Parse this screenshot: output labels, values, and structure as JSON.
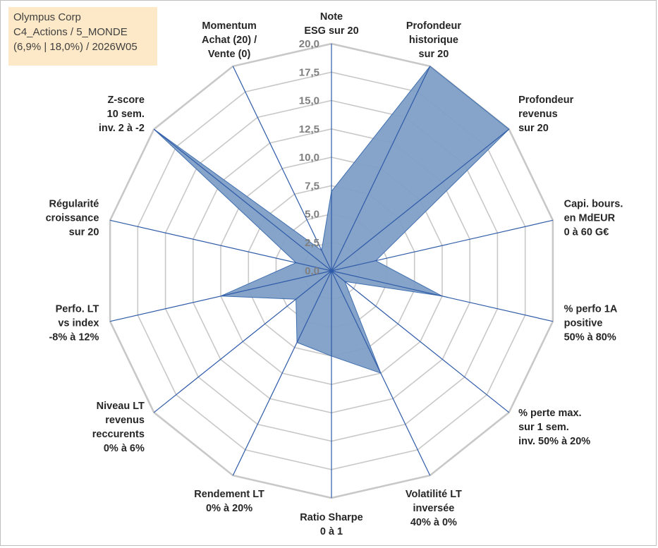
{
  "title_box": {
    "line1": "Olympus Corp",
    "line2": "C4_Actions / 5_MONDE",
    "line3": "(6,9% | 18,0%) / 2026W05"
  },
  "colors": {
    "series_fill": "#7f9fc6",
    "series_stroke": "#3f6fb0",
    "grid": "#c8c8c8",
    "spoke": "#2e5aa8",
    "title_bg": "#fde9c7",
    "tick_text": "#7f7f7f",
    "label_text": "#262626"
  },
  "chart_data": {
    "type": "radar",
    "rmin": 0,
    "rmax": 20,
    "tick_step": 2.5,
    "ticks": [
      "0,0",
      "2,5",
      "5,0",
      "7,5",
      "10,0",
      "12,5",
      "15,0",
      "17,5",
      "20,0"
    ],
    "grid": true,
    "axes": [
      {
        "label": [
          "Note",
          "ESG sur 20"
        ],
        "value": 7
      },
      {
        "label": [
          "Profondeur",
          "historique",
          "sur 20"
        ],
        "value": 20
      },
      {
        "label": [
          "Profondeur",
          "revenus",
          "sur 20"
        ],
        "value": 20
      },
      {
        "label": [
          "Capi. bours.",
          "en MdEUR",
          "0 à 60 G€"
        ],
        "value": 4
      },
      {
        "label": [
          "% perfo 1A",
          "positive",
          "50% à 80%"
        ],
        "value": 10
      },
      {
        "label": [
          "% perte max.",
          "sur 1 sem.",
          "inv. 50% à 20%"
        ],
        "value": 1.5
      },
      {
        "label": [
          "Volatilité LT",
          "inversée",
          "40% à 0%"
        ],
        "value": 10
      },
      {
        "label": [
          "Ratio Sharpe",
          "0 à 1"
        ],
        "value": 7.5
      },
      {
        "label": [
          "Rendement LT",
          "0% à 20%"
        ],
        "value": 7
      },
      {
        "label": [
          "Niveau LT",
          "revenus",
          "reccurents",
          "0% à 6%"
        ],
        "value": 4
      },
      {
        "label": [
          "Perfo. LT",
          "vs index",
          "-8% à 12%"
        ],
        "value": 10
      },
      {
        "label": [
          "Régularité",
          "croissance",
          "sur 20"
        ],
        "value": 3.2
      },
      {
        "label": [
          "Z-score",
          "10 sem.",
          "inv. 2 à -2"
        ],
        "value": 20
      },
      {
        "label": [
          "Momentum",
          "Achat (20) /",
          "Vente (0)"
        ],
        "value": 2
      }
    ]
  }
}
